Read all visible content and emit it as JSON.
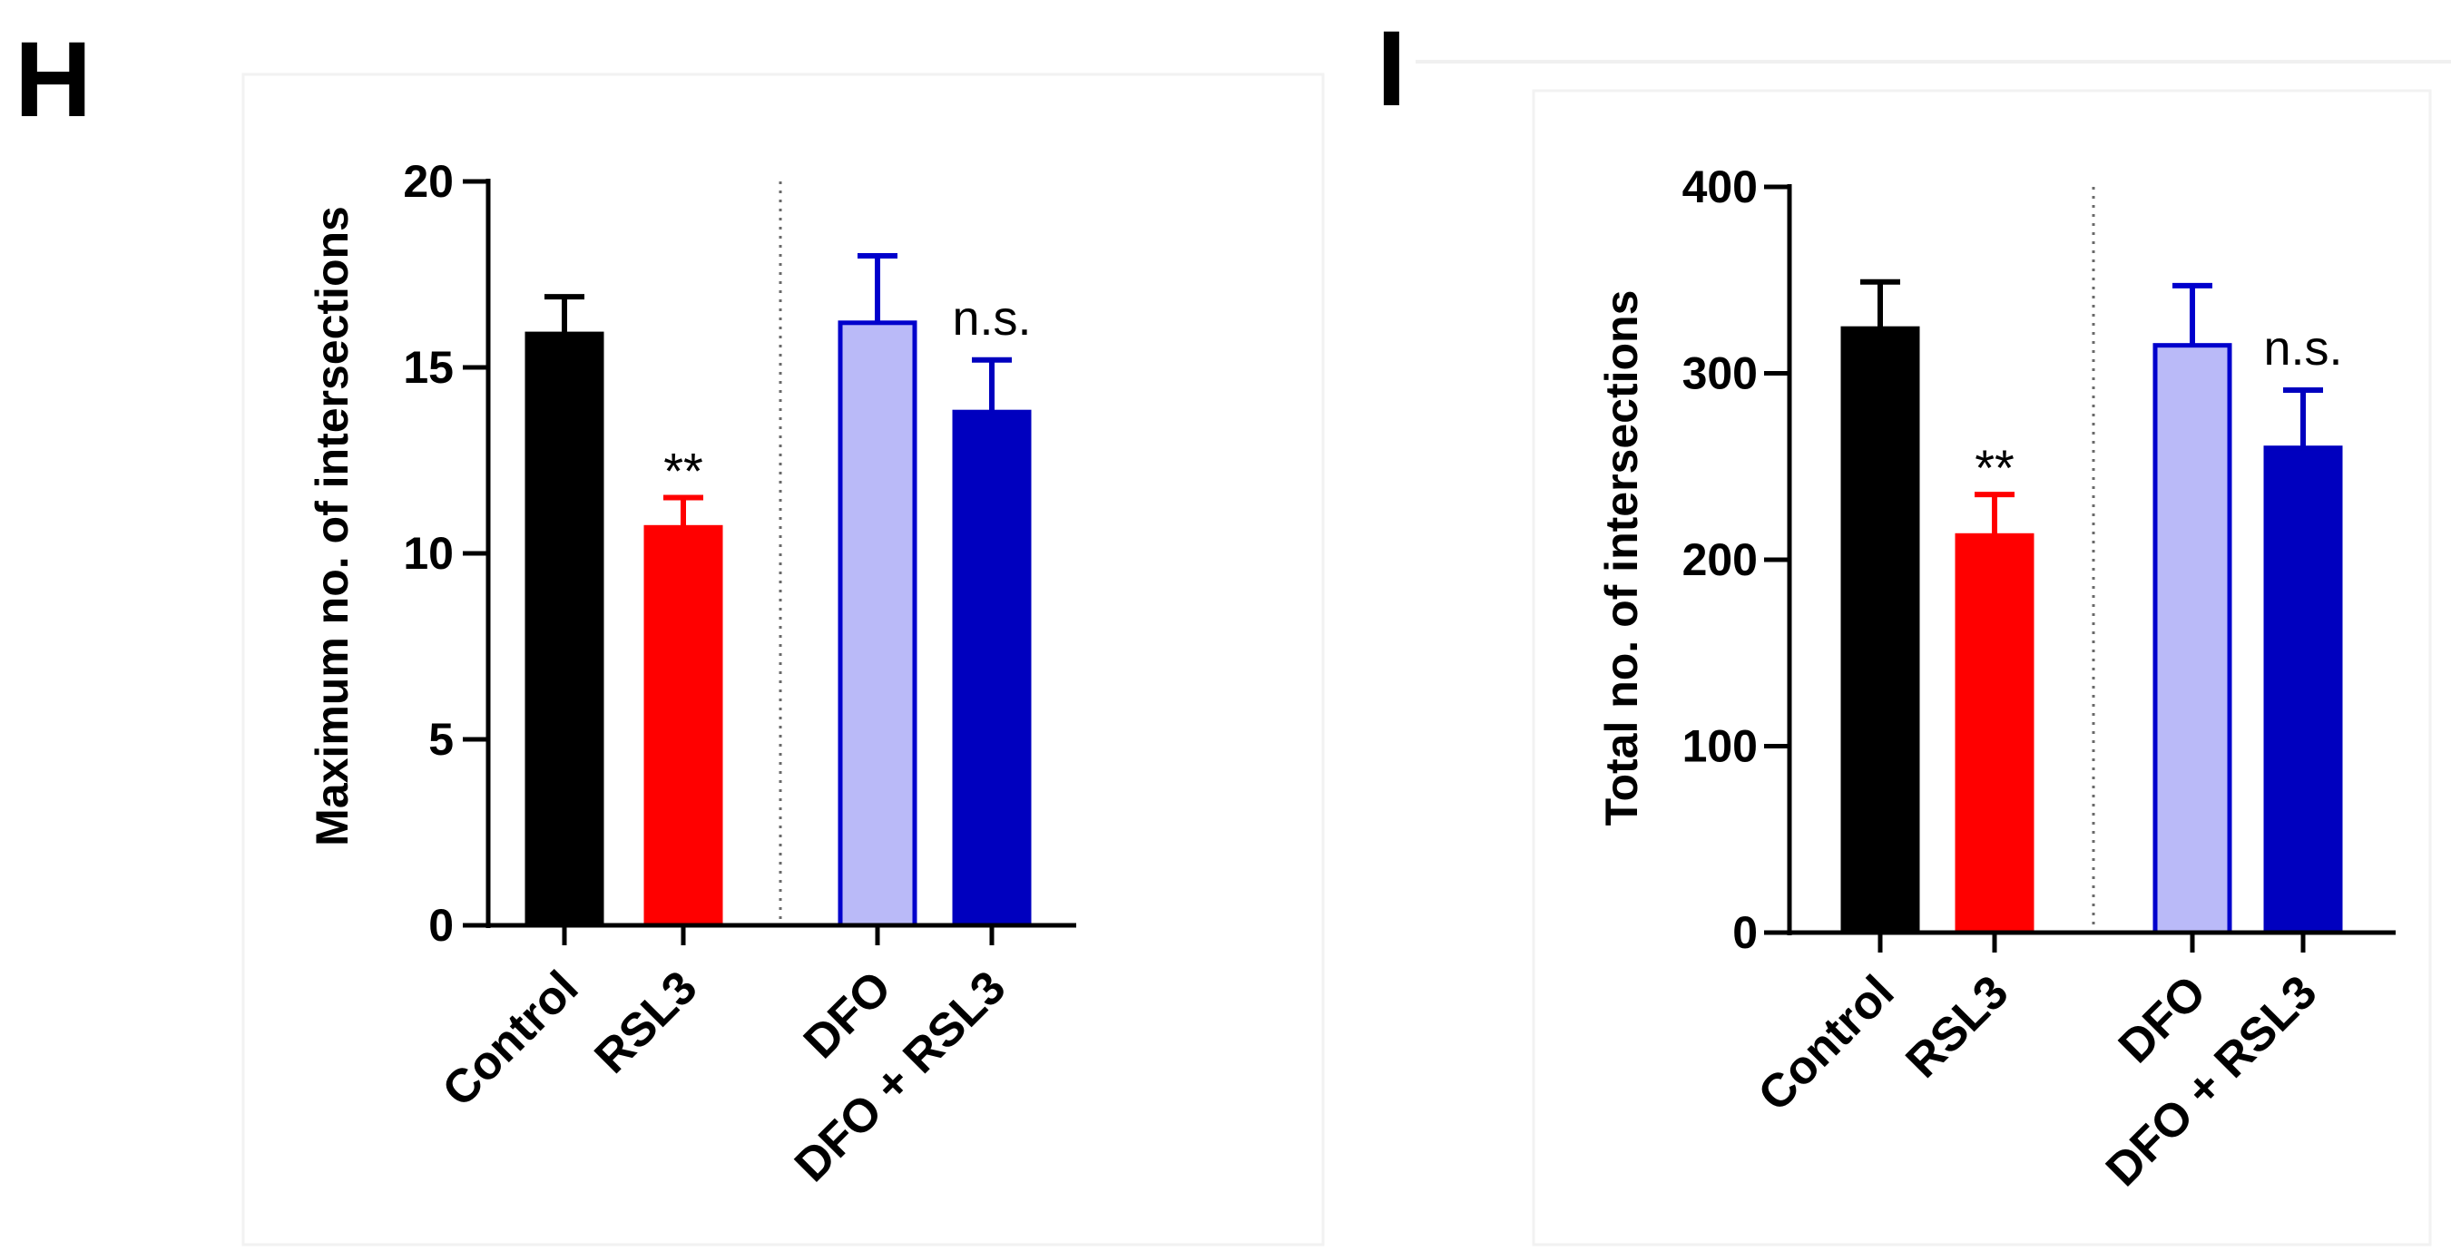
{
  "chart_data": [
    {
      "type": "bar",
      "panel_label": "H",
      "title": "",
      "xlabel": "",
      "ylabel": "Maximum no. of intersections",
      "ylim": [
        0,
        20
      ],
      "yticks": [
        0,
        5,
        10,
        15,
        20
      ],
      "grid": false,
      "categories": [
        "Control",
        "RSL3",
        "DFO",
        "DFO + RSL3"
      ],
      "values": [
        15.9,
        10.7,
        16.2,
        13.8
      ],
      "errors": [
        1.0,
        0.8,
        1.8,
        1.4
      ],
      "significance": [
        "",
        "**",
        "",
        "n.s."
      ],
      "colors": {
        "fill": [
          "#000000",
          "#ff0000",
          "#babaf8",
          "#0000bf"
        ],
        "stroke": [
          "#000000",
          "#ff0000",
          "#0000cc",
          "#0000bf"
        ]
      },
      "group_separator_after_index": 1
    },
    {
      "type": "bar",
      "panel_label": "I",
      "title": "",
      "xlabel": "",
      "ylabel": "Total no. of intersections",
      "ylim": [
        0,
        400
      ],
      "yticks": [
        0,
        100,
        200,
        300,
        400
      ],
      "grid": false,
      "categories": [
        "Control",
        "RSL3",
        "DFO",
        "DFO + RSL3"
      ],
      "values": [
        324,
        213,
        315,
        260
      ],
      "errors": [
        25,
        22,
        32,
        31
      ],
      "significance": [
        "",
        "**",
        "",
        "n.s."
      ],
      "colors": {
        "fill": [
          "#000000",
          "#ff0000",
          "#babaf8",
          "#0000bf"
        ],
        "stroke": [
          "#000000",
          "#ff0000",
          "#0000cc",
          "#0000bf"
        ]
      },
      "group_separator_after_index": 1
    }
  ]
}
